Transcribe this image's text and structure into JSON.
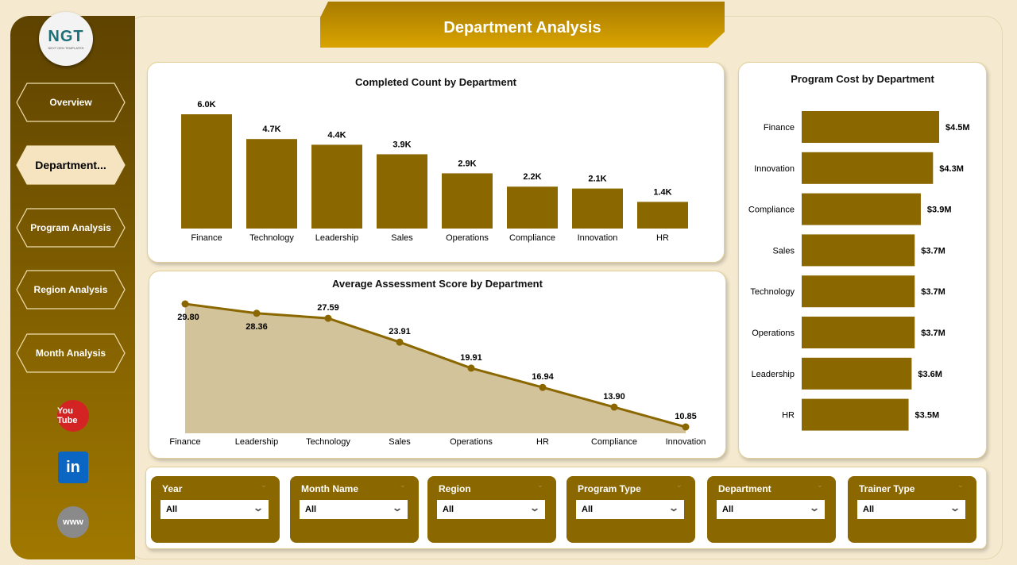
{
  "title": "Department Analysis",
  "logo": {
    "text": "NGT",
    "subtitle": "NEXT GEN TEMPLATES"
  },
  "nav": [
    {
      "label": "Overview",
      "active": false
    },
    {
      "label": "Department...",
      "active": true
    },
    {
      "label": "Program Analysis",
      "active": false
    },
    {
      "label": "Region Analysis",
      "active": false
    },
    {
      "label": "Month Analysis",
      "active": false
    }
  ],
  "social": [
    {
      "icon": "youtube-icon",
      "label": "You Tube",
      "color": "#d32323"
    },
    {
      "icon": "linkedin-icon",
      "label": "in",
      "color": "#0a66c2"
    },
    {
      "icon": "globe-icon",
      "label": "www",
      "color": "#8a8a8a"
    }
  ],
  "colors": {
    "bar": "#8b6700",
    "area": "#d3c39a",
    "line": "#8b6700"
  },
  "chart_data": [
    {
      "type": "bar",
      "title": "Completed Count by Department",
      "categories": [
        "Finance",
        "Technology",
        "Leadership",
        "Sales",
        "Operations",
        "Compliance",
        "Innovation",
        "HR"
      ],
      "values": [
        6.0,
        4.7,
        4.4,
        3.9,
        2.9,
        2.2,
        2.1,
        1.4
      ],
      "labels": [
        "6.0K",
        "4.7K",
        "4.4K",
        "3.9K",
        "2.9K",
        "2.2K",
        "2.1K",
        "1.4K"
      ],
      "unit": "K"
    },
    {
      "type": "area",
      "title": "Average Assessment Score by Department",
      "categories": [
        "Finance",
        "Leadership",
        "Technology",
        "Sales",
        "Operations",
        "HR",
        "Compliance",
        "Innovation"
      ],
      "values": [
        29.8,
        28.36,
        27.59,
        23.91,
        19.91,
        16.94,
        13.9,
        10.85
      ],
      "labels": [
        "29.80",
        "28.36",
        "27.59",
        "23.91",
        "19.91",
        "16.94",
        "13.90",
        "10.85"
      ]
    },
    {
      "type": "bar",
      "orientation": "horizontal",
      "title": "Program Cost by Department",
      "categories": [
        "Finance",
        "Innovation",
        "Compliance",
        "Sales",
        "Technology",
        "Operations",
        "Leadership",
        "HR"
      ],
      "values": [
        4.5,
        4.3,
        3.9,
        3.7,
        3.7,
        3.7,
        3.6,
        3.5
      ],
      "labels": [
        "$4.5M",
        "$4.3M",
        "$3.9M",
        "$3.7M",
        "$3.7M",
        "$3.7M",
        "$3.6M",
        "$3.5M"
      ],
      "unit": "$M"
    }
  ],
  "filters": [
    {
      "label": "Year",
      "value": "All"
    },
    {
      "label": "Month Name",
      "value": "All"
    },
    {
      "label": "Region",
      "value": "All"
    },
    {
      "label": "Program Type",
      "value": "All"
    },
    {
      "label": "Department",
      "value": "All"
    },
    {
      "label": "Trainer Type",
      "value": "All"
    }
  ]
}
